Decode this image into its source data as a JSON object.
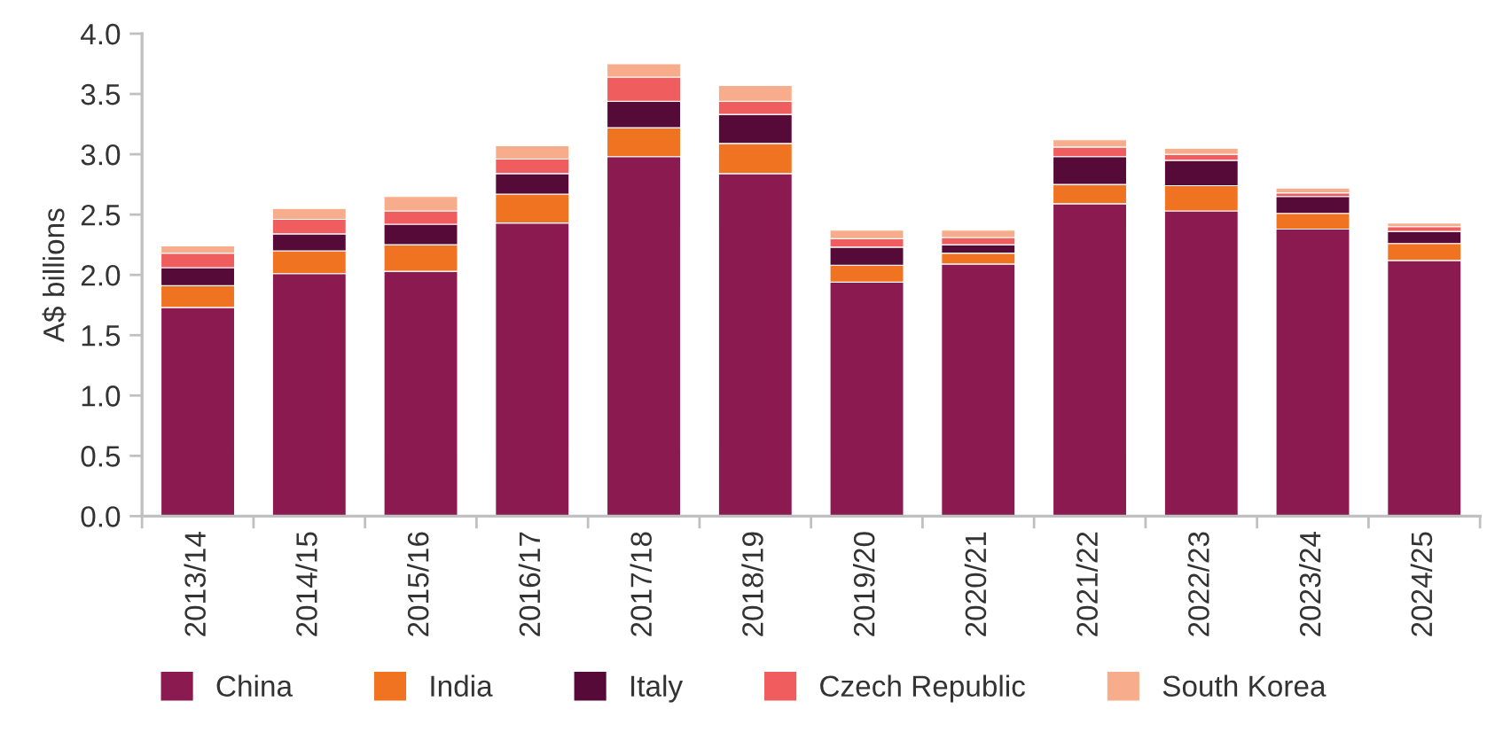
{
  "chart_data": {
    "type": "bar",
    "stacked": true,
    "ylabel": "A$ billions",
    "categories": [
      "2013/14",
      "2014/15",
      "2015/16",
      "2016/17",
      "2017/18",
      "2018/19",
      "2019/20",
      "2020/21",
      "2021/22",
      "2022/23",
      "2023/24",
      "2024/25"
    ],
    "series": [
      {
        "name": "China",
        "color": "#8a1a50",
        "values": [
          1.73,
          2.01,
          2.03,
          2.43,
          2.98,
          2.84,
          1.94,
          2.09,
          2.59,
          2.53,
          2.38,
          2.12
        ]
      },
      {
        "name": "India",
        "color": "#f07322",
        "values": [
          0.18,
          0.19,
          0.22,
          0.24,
          0.24,
          0.25,
          0.14,
          0.09,
          0.16,
          0.21,
          0.13,
          0.14
        ]
      },
      {
        "name": "Italy",
        "color": "#560a38",
        "values": [
          0.15,
          0.14,
          0.17,
          0.17,
          0.22,
          0.24,
          0.15,
          0.07,
          0.23,
          0.21,
          0.14,
          0.1
        ]
      },
      {
        "name": "Czech Republic",
        "color": "#f05d5e",
        "values": [
          0.12,
          0.12,
          0.11,
          0.12,
          0.2,
          0.11,
          0.07,
          0.06,
          0.08,
          0.05,
          0.03,
          0.04
        ]
      },
      {
        "name": "South Korea",
        "color": "#f7ad8c",
        "values": [
          0.06,
          0.09,
          0.12,
          0.11,
          0.11,
          0.13,
          0.07,
          0.06,
          0.06,
          0.05,
          0.04,
          0.03
        ]
      }
    ],
    "ylim": [
      0,
      4.0
    ],
    "yticks": [
      {
        "value": 0,
        "label": "0.0"
      },
      {
        "value": 0.5,
        "label": "0.5"
      },
      {
        "value": 1.0,
        "label": "1.0"
      },
      {
        "value": 1.5,
        "label": "1.5"
      },
      {
        "value": 2.0,
        "label": "2.0"
      },
      {
        "value": 2.5,
        "label": "2.5"
      },
      {
        "value": 3.0,
        "label": "3.0"
      },
      {
        "value": 3.5,
        "label": "3.5"
      },
      {
        "value": 4.0,
        "label": "4.0"
      }
    ],
    "grid": false,
    "legend": "bottom"
  }
}
